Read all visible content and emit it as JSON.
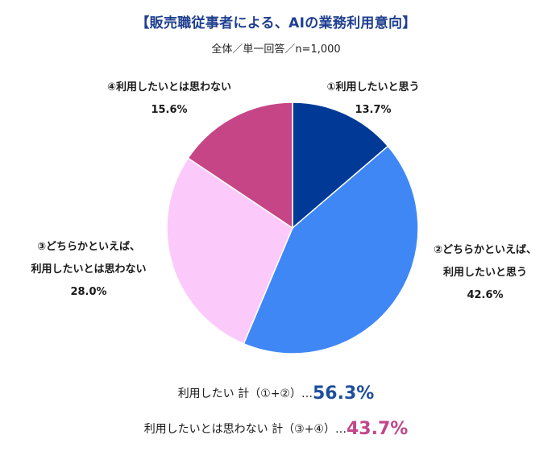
{
  "header": {
    "title": "【販売職従事者による、AIの業務利用意向】",
    "subtitle": "全体／単一回答／n=1,000"
  },
  "chart_data": {
    "type": "pie",
    "title": "【販売職従事者による、AIの業務利用意向】",
    "subtitle": "全体／単一回答／n=1,000",
    "start_angle": "12 o'clock, clockwise",
    "slices": [
      {
        "label": "①利用したいと思う",
        "value": 13.7,
        "color": "#003a96"
      },
      {
        "label": "②どちらかといえば、利用したいと思う",
        "value": 42.6,
        "color": "#3f87f5"
      },
      {
        "label": "③どちらかといえば、利用したいとは思わない",
        "value": 28.0,
        "color": "#fccafa"
      },
      {
        "label": "④利用したいとは思わない",
        "value": 15.6,
        "color": "#c54587"
      }
    ]
  },
  "labels": {
    "s1": {
      "line1": "①利用したいと思う",
      "pct": "13.7%"
    },
    "s2": {
      "line1": "②どちらかといえば、",
      "line2": "利用したいと思う",
      "pct": "42.6%"
    },
    "s3": {
      "line1": "③どちらかといえば、",
      "line2": "利用したいとは思わない",
      "pct": "28.0%"
    },
    "s4": {
      "line1": "④利用したいとは思わない",
      "pct": "15.6%"
    }
  },
  "summary": {
    "positive": {
      "text": "利用したい 計（①+②）…",
      "value": "56.3%",
      "color": "#1f4e9c"
    },
    "negative": {
      "text": "利用したいとは思わない 計（③+④）…",
      "value": "43.7%",
      "color": "#c2468a"
    }
  }
}
